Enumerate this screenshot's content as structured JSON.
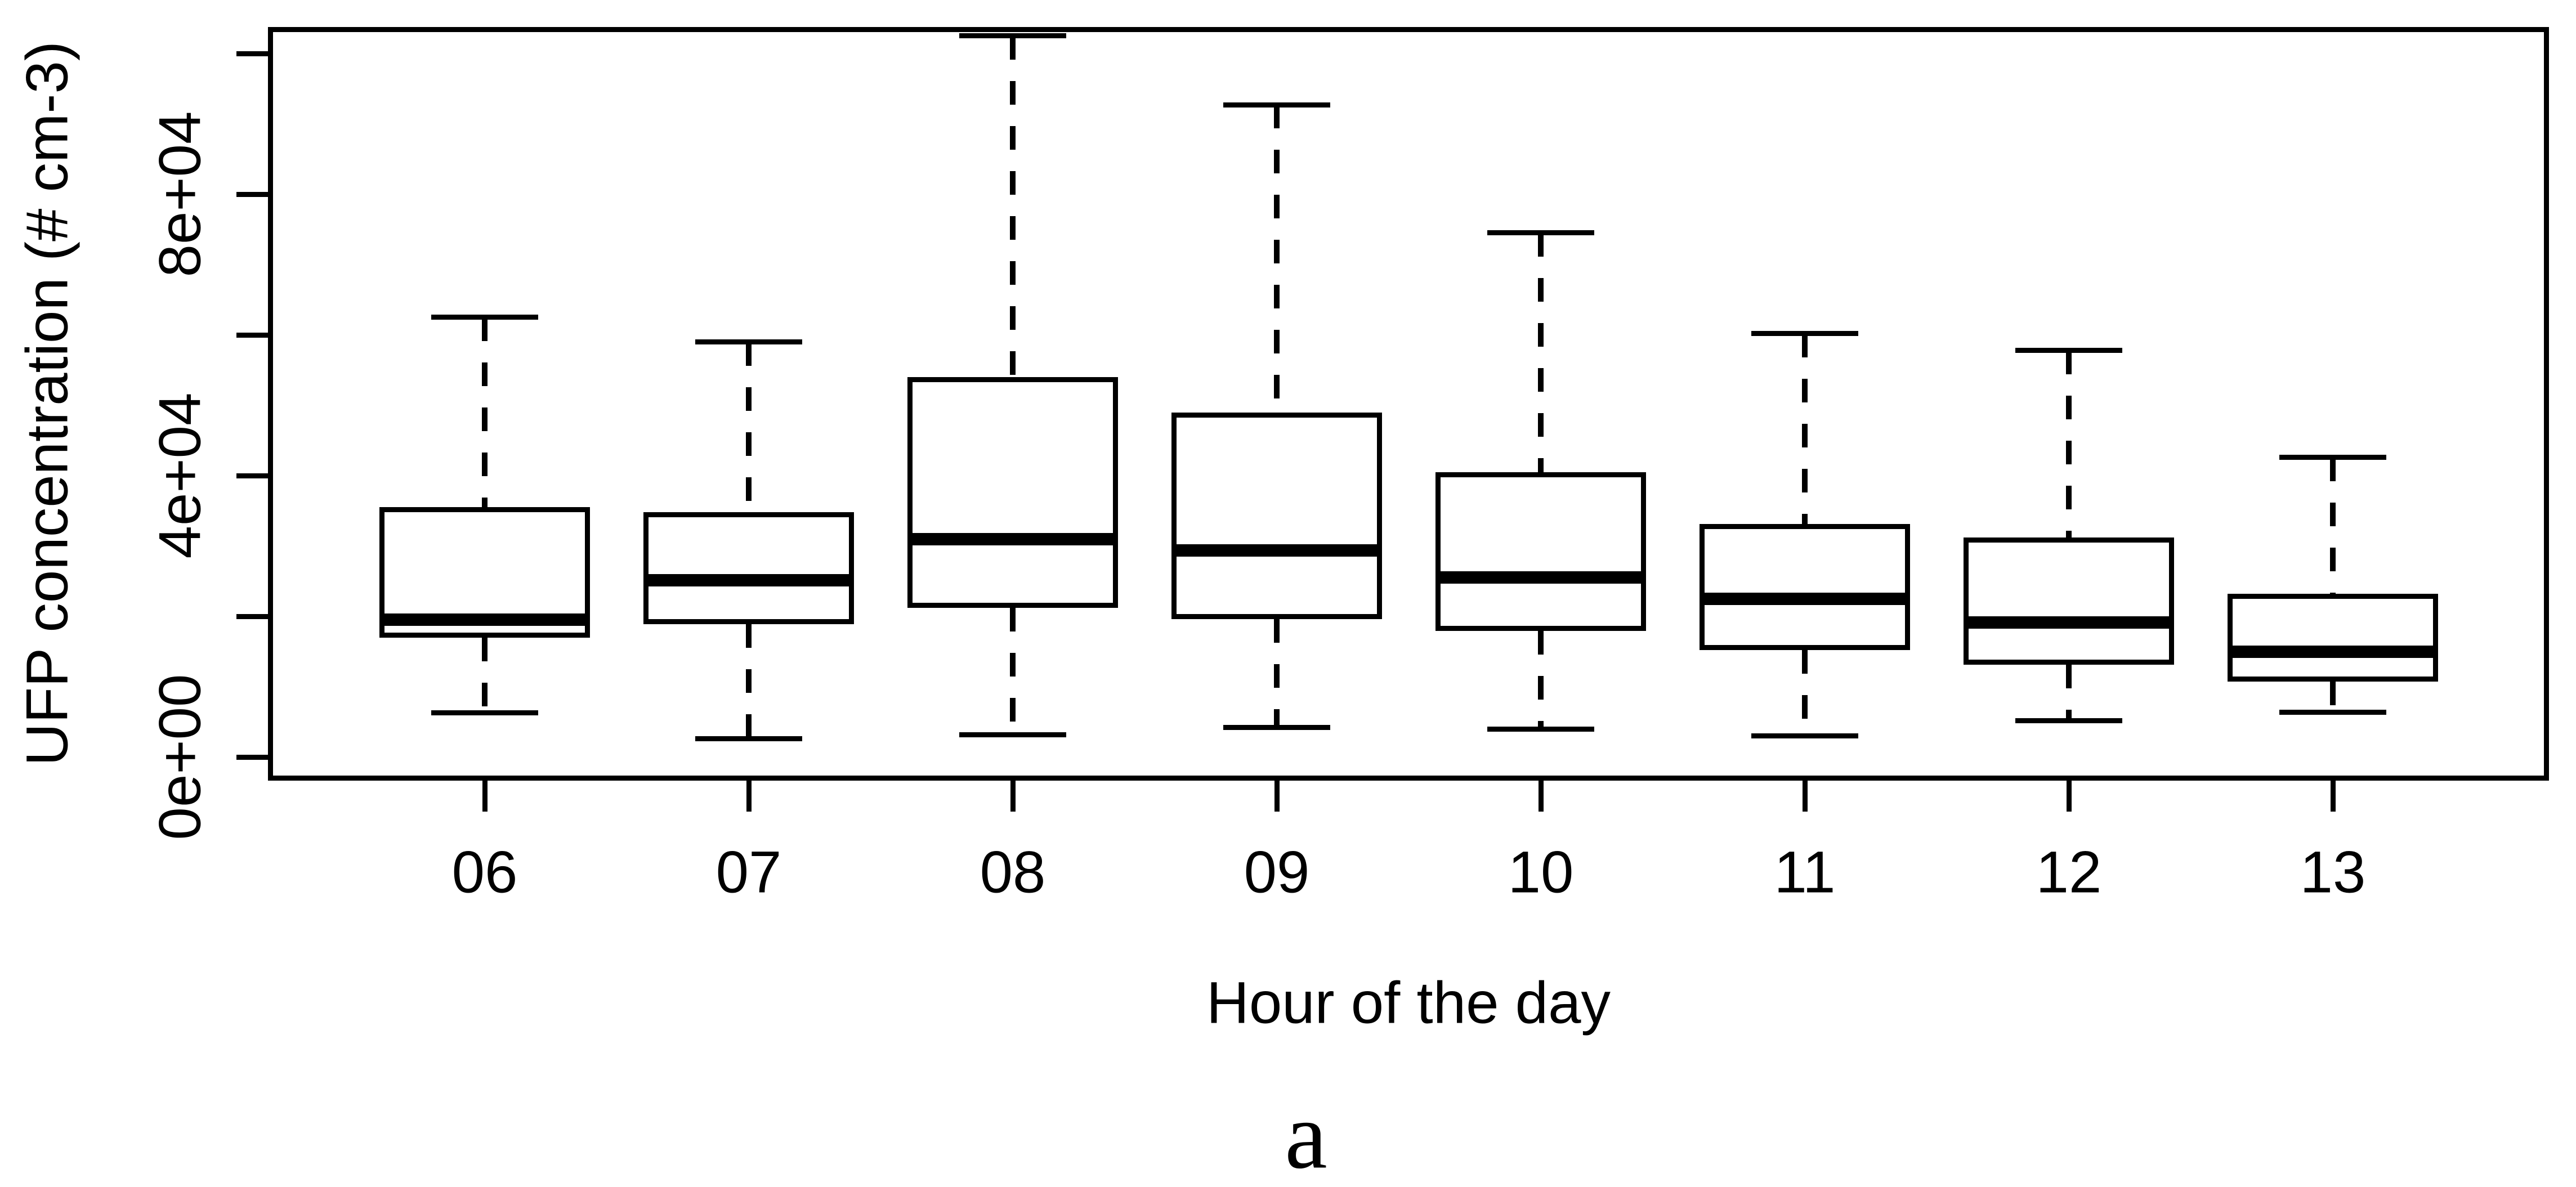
{
  "caption": "a",
  "colors": {
    "foreground": "#000000",
    "background": "#ffffff"
  },
  "chart_data": {
    "type": "boxplot",
    "title": "a",
    "xlabel": "Hour of the day",
    "ylabel": "UFP concentration (# cm-3)",
    "categories": [
      "06",
      "07",
      "08",
      "09",
      "10",
      "11",
      "12",
      "13"
    ],
    "series": [
      {
        "hour": "06",
        "whisker_low": 6300,
        "q1": 17000,
        "median": 19500,
        "q3": 35500,
        "whisker_high": 62500
      },
      {
        "hour": "07",
        "whisker_low": 2600,
        "q1": 18900,
        "median": 25100,
        "q3": 34800,
        "whisker_high": 59000
      },
      {
        "hour": "08",
        "whisker_low": 3200,
        "q1": 21200,
        "median": 31000,
        "q3": 54000,
        "whisker_high": 102500
      },
      {
        "hour": "09",
        "whisker_low": 4200,
        "q1": 19600,
        "median": 29400,
        "q3": 49000,
        "whisker_high": 92700
      },
      {
        "hour": "10",
        "whisker_low": 4000,
        "q1": 17900,
        "median": 25500,
        "q3": 40500,
        "whisker_high": 74500
      },
      {
        "hour": "11",
        "whisker_low": 3000,
        "q1": 15200,
        "median": 22500,
        "q3": 33100,
        "whisker_high": 60200
      },
      {
        "hour": "12",
        "whisker_low": 5200,
        "q1": 13100,
        "median": 19100,
        "q3": 31200,
        "whisker_high": 57800
      },
      {
        "hour": "13",
        "whisker_low": 6400,
        "q1": 10700,
        "median": 15000,
        "q3": 23200,
        "whisker_high": 42600
      }
    ],
    "y_axis": {
      "labeled_ticks": [
        {
          "value": 0,
          "label": "0e+00"
        },
        {
          "value": 40000,
          "label": "4e+04"
        },
        {
          "value": 80000,
          "label": "8e+04"
        }
      ],
      "unlabeled_tick_values": [
        20000,
        60000,
        100000
      ],
      "ylim": [
        -3400,
        103800
      ]
    },
    "grid": false,
    "frame": true,
    "legend": null
  }
}
